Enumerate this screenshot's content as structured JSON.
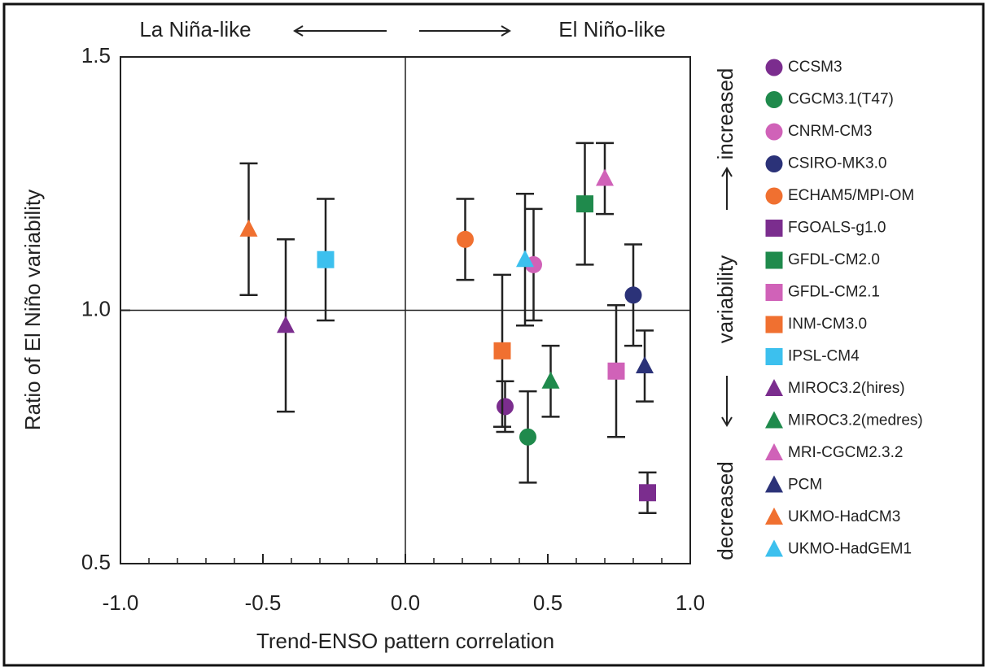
{
  "chart_data": {
    "type": "scatter",
    "xlabel": "Trend-ENSO pattern correlation",
    "ylabel": "Ratio of El Niño variability",
    "annotations": {
      "left": "La Niña-like",
      "right": "El Niño-like",
      "up": "increased",
      "middle": "variability",
      "down": "decreased"
    },
    "xlim": [
      -1,
      1
    ],
    "ylim": [
      0.5,
      1.5
    ],
    "xticks": [
      {
        "value": -1,
        "label": "-1.0"
      },
      {
        "value": -0.5,
        "label": "-0.5"
      },
      {
        "value": 0,
        "label": "0.0"
      },
      {
        "value": 0.5,
        "label": "0.5"
      },
      {
        "value": 1,
        "label": "1.0"
      }
    ],
    "yticks": [
      0.5,
      {
        "value": 1,
        "label": "1.0"
      },
      1.5
    ],
    "xminorticks": [
      -0.9,
      -0.8,
      -0.7,
      -0.6,
      -0.4,
      -0.3,
      -0.2,
      -0.1,
      0.1,
      0.2,
      0.3,
      0.4,
      0.6,
      0.7,
      0.8,
      0.9
    ],
    "vlines": [
      0
    ],
    "hlines": [
      1
    ],
    "series": [
      {
        "name": "CCSM3",
        "color": "#7b2d8e",
        "marker": "circle",
        "x": [
          0.35
        ],
        "values": [
          0.81
        ],
        "errors": [
          0.05
        ]
      },
      {
        "name": "CGCM3.1(T47)",
        "color": "#1f8a4c",
        "marker": "circle",
        "x": [
          0.43
        ],
        "values": [
          0.75
        ],
        "errors": [
          0.09
        ]
      },
      {
        "name": "CNRM-CM3",
        "color": "#d062b8",
        "marker": "circle",
        "x": [
          0.45
        ],
        "values": [
          1.09
        ],
        "errors": [
          0.11
        ]
      },
      {
        "name": "CSIRO-MK3.0",
        "color": "#2b3278",
        "marker": "circle",
        "x": [
          0.8
        ],
        "values": [
          1.03
        ],
        "errors": [
          0.1
        ]
      },
      {
        "name": "ECHAM5/MPI-OM",
        "color": "#f07030",
        "marker": "circle",
        "x": [
          0.21
        ],
        "values": [
          1.14
        ],
        "errors": [
          0.08
        ]
      },
      {
        "name": "FGOALS-g1.0",
        "color": "#7b2d8e",
        "marker": "square",
        "x": [
          0.85
        ],
        "values": [
          0.64
        ],
        "errors": [
          0.04
        ]
      },
      {
        "name": "GFDL-CM2.0",
        "color": "#1f8a4c",
        "marker": "square",
        "x": [
          0.63
        ],
        "values": [
          1.21
        ],
        "errors": [
          0.12
        ]
      },
      {
        "name": "GFDL-CM2.1",
        "color": "#d062b8",
        "marker": "square",
        "x": [
          0.74
        ],
        "values": [
          0.88
        ],
        "errors": [
          0.13
        ]
      },
      {
        "name": "INM-CM3.0",
        "color": "#f07030",
        "marker": "square",
        "x": [
          0.34
        ],
        "values": [
          0.92
        ],
        "errors": [
          0.15
        ]
      },
      {
        "name": "IPSL-CM4",
        "color": "#3cc0ee",
        "marker": "square",
        "x": [
          -0.28
        ],
        "values": [
          1.1
        ],
        "errors": [
          0.12
        ]
      },
      {
        "name": "MIROC3.2(hires)",
        "color": "#7b2d8e",
        "marker": "triangle",
        "x": [
          -0.42
        ],
        "values": [
          0.97
        ],
        "errors": [
          0.17
        ]
      },
      {
        "name": "MIROC3.2(medres)",
        "color": "#1f8a4c",
        "marker": "triangle",
        "x": [
          0.51
        ],
        "values": [
          0.86
        ],
        "errors": [
          0.07
        ]
      },
      {
        "name": "MRI-CGCM2.3.2",
        "color": "#d062b8",
        "marker": "triangle",
        "x": [
          0.7
        ],
        "values": [
          1.26
        ],
        "errors": [
          0.07
        ]
      },
      {
        "name": "PCM",
        "color": "#2b3278",
        "marker": "triangle",
        "x": [
          0.84
        ],
        "values": [
          0.89
        ],
        "errors": [
          0.07
        ]
      },
      {
        "name": "UKMO-HadCM3",
        "color": "#f07030",
        "marker": "triangle",
        "x": [
          -0.55
        ],
        "values": [
          1.16
        ],
        "errors": [
          0.13
        ]
      },
      {
        "name": "UKMO-HadGEM1",
        "color": "#3cc0ee",
        "marker": "triangle",
        "x": [
          0.42
        ],
        "values": [
          1.1
        ],
        "errors": [
          0.13
        ]
      }
    ]
  }
}
